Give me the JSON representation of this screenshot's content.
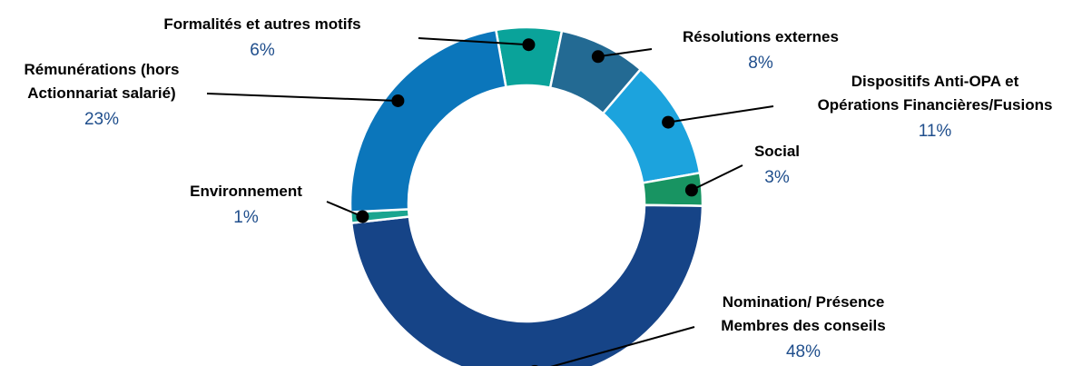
{
  "chart_data": {
    "type": "pie",
    "variant": "donut",
    "title": "",
    "legend": "none",
    "slices": [
      {
        "label": [
          "Formalités et autres motifs"
        ],
        "value": 6,
        "percent_label": "6%",
        "color": "#0aa39a"
      },
      {
        "label": [
          "Résolutions externes"
        ],
        "value": 8,
        "percent_label": "8%",
        "color": "#236a93"
      },
      {
        "label": [
          "Dispositifs Anti-OPA et",
          "Opérations Financières/Fusions"
        ],
        "value": 11,
        "percent_label": "11%",
        "color": "#1ca3dd"
      },
      {
        "label": [
          "Social"
        ],
        "value": 3,
        "percent_label": "3%",
        "color": "#189462"
      },
      {
        "label": [
          "Nomination/ Présence",
          "Membres des conseils"
        ],
        "value": 48,
        "percent_label": "48%",
        "color": "#164487"
      },
      {
        "label": [
          "Environnement"
        ],
        "value": 1,
        "percent_label": "1%",
        "color": "#1aa58f"
      },
      {
        "label": [
          "Rémunérations (hors",
          "Actionnariat salarié)"
        ],
        "value": 23,
        "percent_label": "23%",
        "color": "#0b76bb"
      }
    ]
  }
}
